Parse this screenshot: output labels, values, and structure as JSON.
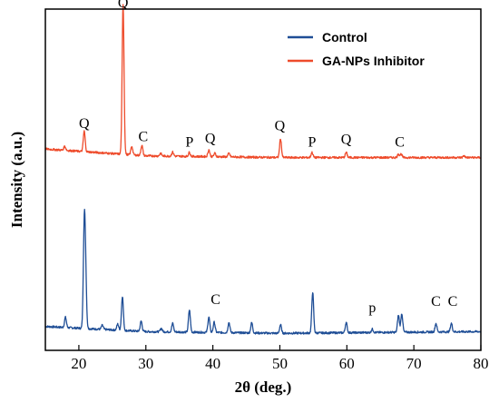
{
  "chart_data": {
    "type": "line",
    "xlabel": "2θ (deg.)",
    "ylabel": "Intensity (a.u.)",
    "xlim": [
      15,
      80
    ],
    "xticks": [
      20,
      30,
      40,
      50,
      60,
      70,
      80
    ],
    "yticks_shown": false,
    "legend": {
      "placement": "top-right"
    },
    "series": [
      {
        "name": "Control",
        "color": "#1f4e96",
        "baseline": 0.05,
        "background": [
          [
            15,
            0.07
          ],
          [
            30,
            0.055
          ],
          [
            50,
            0.05
          ],
          [
            80,
            0.055
          ]
        ],
        "peaks": [
          {
            "x": 18.0,
            "h": 0.03
          },
          {
            "x": 20.8,
            "h": 0.28
          },
          {
            "x": 21.0,
            "h": 0.15
          },
          {
            "x": 23.5,
            "h": 0.012
          },
          {
            "x": 25.8,
            "h": 0.018
          },
          {
            "x": 26.5,
            "h": 0.1
          },
          {
            "x": 29.3,
            "h": 0.03
          },
          {
            "x": 32.3,
            "h": 0.01
          },
          {
            "x": 34.0,
            "h": 0.025
          },
          {
            "x": 36.5,
            "h": 0.065
          },
          {
            "x": 39.4,
            "h": 0.045
          },
          {
            "x": 40.2,
            "h": 0.03
          },
          {
            "x": 42.4,
            "h": 0.03
          },
          {
            "x": 45.8,
            "h": 0.03
          },
          {
            "x": 50.1,
            "h": 0.025
          },
          {
            "x": 54.9,
            "h": 0.12
          },
          {
            "x": 59.9,
            "h": 0.03
          },
          {
            "x": 63.8,
            "h": 0.01
          },
          {
            "x": 67.7,
            "h": 0.05
          },
          {
            "x": 68.2,
            "h": 0.055
          },
          {
            "x": 73.3,
            "h": 0.025
          },
          {
            "x": 75.6,
            "h": 0.025
          }
        ]
      },
      {
        "name": "GA-NPs Inhibitor",
        "color": "#ee4b2b",
        "baseline": 0.56,
        "background": [
          [
            15,
            0.59
          ],
          [
            30,
            0.57
          ],
          [
            50,
            0.565
          ],
          [
            80,
            0.565
          ]
        ],
        "peaks": [
          {
            "x": 17.9,
            "h": 0.012
          },
          {
            "x": 20.8,
            "h": 0.06
          },
          {
            "x": 26.6,
            "h": 0.44
          },
          {
            "x": 27.9,
            "h": 0.025
          },
          {
            "x": 29.4,
            "h": 0.03
          },
          {
            "x": 32.2,
            "h": 0.008
          },
          {
            "x": 34.0,
            "h": 0.012
          },
          {
            "x": 36.5,
            "h": 0.012
          },
          {
            "x": 39.4,
            "h": 0.02
          },
          {
            "x": 40.3,
            "h": 0.01
          },
          {
            "x": 42.4,
            "h": 0.01
          },
          {
            "x": 50.1,
            "h": 0.055
          },
          {
            "x": 54.8,
            "h": 0.015
          },
          {
            "x": 59.9,
            "h": 0.015
          },
          {
            "x": 67.7,
            "h": 0.01
          },
          {
            "x": 68.1,
            "h": 0.01
          },
          {
            "x": 77.5,
            "h": 0.005
          }
        ]
      }
    ],
    "annotations": [
      {
        "text": "Q",
        "x": 26.6,
        "y": 1.005
      },
      {
        "text": "Q",
        "x": 20.8,
        "y": 0.652
      },
      {
        "text": "C",
        "x": 29.6,
        "y": 0.613
      },
      {
        "text": "P",
        "x": 36.5,
        "y": 0.597
      },
      {
        "text": "Q",
        "x": 39.6,
        "y": 0.608
      },
      {
        "text": "Q",
        "x": 50.0,
        "y": 0.645
      },
      {
        "text": "P",
        "x": 54.8,
        "y": 0.597
      },
      {
        "text": "Q",
        "x": 59.9,
        "y": 0.605
      },
      {
        "text": "C",
        "x": 67.9,
        "y": 0.597
      },
      {
        "text": "C",
        "x": 40.4,
        "y": 0.135
      },
      {
        "text": "p",
        "x": 63.8,
        "y": 0.112
      },
      {
        "text": "C",
        "x": 73.3,
        "y": 0.13
      },
      {
        "text": "C",
        "x": 75.8,
        "y": 0.13
      }
    ]
  }
}
